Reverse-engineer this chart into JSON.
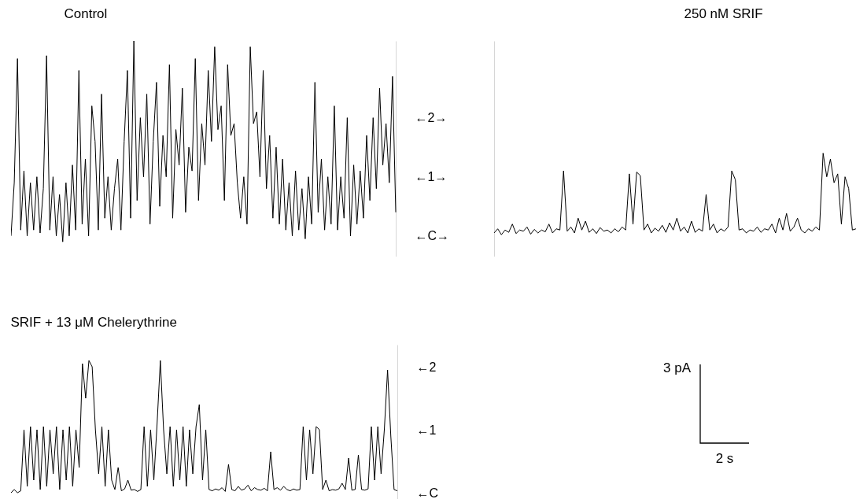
{
  "chart_data": [
    {
      "type": "line",
      "title": "Control",
      "categories": [
        null,
        null,
        null,
        null,
        null,
        null,
        null,
        null,
        null,
        null,
        null,
        null,
        null,
        null,
        null,
        null,
        null,
        null,
        null,
        null,
        null,
        null,
        null,
        null,
        null,
        null,
        null,
        null,
        null,
        null,
        null,
        null,
        null,
        null,
        null,
        null,
        null,
        null,
        null,
        null,
        null,
        null,
        null,
        null,
        null,
        null,
        null,
        null,
        null,
        null,
        null,
        null,
        null,
        null,
        null,
        null,
        null,
        null,
        null,
        null,
        null,
        null,
        null,
        null,
        null,
        null,
        null,
        null,
        null,
        null,
        null,
        null,
        null,
        null,
        null,
        null,
        null,
        null,
        null,
        null,
        null,
        null,
        null,
        null,
        null,
        null,
        null,
        null,
        null,
        null,
        null,
        null,
        null,
        null,
        null,
        null,
        null,
        null,
        null,
        null,
        null,
        null,
        null,
        null,
        null,
        null,
        null,
        null,
        null,
        null,
        null,
        null,
        null,
        null,
        null,
        null,
        null,
        null,
        null,
        null
      ],
      "series": [
        {
          "color": "#000000",
          "values": [
            0,
            0.9,
            3.0,
            0.1,
            1.1,
            0.0,
            0.9,
            0.1,
            1.0,
            0.05,
            0.8,
            3.05,
            0.1,
            1.0,
            0.0,
            0.7,
            -0.1,
            0.9,
            0.0,
            1.2,
            0.1,
            2.8,
            0.2,
            1.3,
            0.0,
            2.2,
            1.6,
            0.1,
            2.4,
            0.3,
            1.0,
            0.1,
            0.8,
            1.3,
            0.1,
            1.6,
            2.8,
            0.3,
            3.3,
            0.6,
            2.0,
            1.0,
            2.4,
            0.2,
            1.6,
            2.6,
            0.5,
            1.7,
            1.0,
            2.9,
            0.3,
            1.8,
            1.2,
            2.5,
            0.4,
            1.5,
            1.1,
            3.0,
            0.6,
            1.9,
            1.2,
            2.8,
            1.6,
            3.2,
            1.8,
            2.2,
            0.6,
            2.9,
            1.7,
            1.9,
            0.9,
            0.3,
            1.0,
            0.2,
            3.2,
            1.9,
            2.1,
            1.0,
            2.8,
            0.8,
            1.7,
            0.3,
            1.5,
            0.2,
            1.3,
            0.1,
            0.9,
            0.0,
            1.1,
            0.1,
            0.8,
            -0.05,
            1.0,
            0.2,
            2.6,
            0.4,
            1.3,
            0.1,
            1.0,
            0.2,
            2.2,
            0.1,
            1.0,
            0.3,
            2.0,
            0.0,
            1.2,
            0.2,
            1.1,
            0.3,
            1.7,
            0.6,
            2.0,
            0.8,
            2.5,
            1.2,
            1.9,
            0.9,
            2.7,
            0.4
          ]
        }
      ],
      "ylim": [
        -0.35,
        3.3
      ],
      "yticks": [
        {
          "value": 0,
          "label": "←C→"
        },
        {
          "value": 1,
          "label": "←1→"
        },
        {
          "value": 2,
          "label": "←2→"
        }
      ]
    },
    {
      "type": "line",
      "title": "250 nM SRIF",
      "categories": [
        null,
        null,
        null,
        null,
        null,
        null,
        null,
        null,
        null,
        null,
        null,
        null,
        null,
        null,
        null,
        null,
        null,
        null,
        null,
        null,
        null,
        null,
        null,
        null,
        null,
        null,
        null,
        null,
        null,
        null,
        null,
        null,
        null,
        null,
        null,
        null,
        null,
        null,
        null,
        null,
        null,
        null,
        null,
        null,
        null,
        null,
        null,
        null,
        null,
        null,
        null,
        null,
        null,
        null,
        null,
        null,
        null,
        null,
        null,
        null,
        null,
        null,
        null,
        null,
        null,
        null,
        null,
        null,
        null,
        null,
        null,
        null,
        null,
        null,
        null,
        null,
        null,
        null,
        null,
        null,
        null,
        null,
        null,
        null,
        null,
        null,
        null,
        null,
        null,
        null,
        null,
        null,
        null,
        null,
        null,
        null,
        null,
        null,
        null,
        null
      ],
      "series": [
        {
          "color": "#000000",
          "values": [
            0.05,
            0.12,
            0.02,
            0.1,
            0.06,
            0.2,
            0.04,
            0.1,
            0.08,
            0.15,
            0.03,
            0.11,
            0.05,
            0.1,
            0.07,
            0.2,
            0.05,
            0.12,
            0.1,
            1.1,
            0.08,
            0.15,
            0.05,
            0.3,
            0.1,
            0.25,
            0.06,
            0.12,
            0.04,
            0.14,
            0.08,
            0.1,
            0.05,
            0.12,
            0.07,
            0.15,
            0.1,
            1.05,
            0.2,
            1.08,
            1.02,
            0.1,
            0.2,
            0.05,
            0.13,
            0.08,
            0.18,
            0.06,
            0.22,
            0.1,
            0.3,
            0.08,
            0.15,
            0.05,
            0.25,
            0.06,
            0.12,
            0.08,
            0.7,
            0.1,
            0.2,
            0.05,
            0.12,
            0.08,
            0.15,
            1.1,
            0.95,
            0.1,
            0.12,
            0.05,
            0.1,
            0.08,
            0.15,
            0.06,
            0.12,
            0.1,
            0.2,
            0.05,
            0.3,
            0.1,
            0.38,
            0.08,
            0.15,
            0.3,
            0.1,
            0.05,
            0.12,
            0.08,
            0.15,
            0.1,
            1.4,
            1.0,
            1.3,
            0.9,
            1.05,
            0.2,
            1.0,
            0.8,
            0.1,
            0.12
          ]
        }
      ],
      "ylim": [
        -0.35,
        3.3
      ],
      "yticks": [
        {
          "value": 0,
          "label": null
        },
        {
          "value": 1,
          "label": null
        },
        {
          "value": 2,
          "label": null
        }
      ],
      "tick_labels": false
    },
    {
      "type": "line",
      "title": "SRIF + 13 μM Chelerythrine",
      "categories": [
        null,
        null,
        null,
        null,
        null,
        null,
        null,
        null,
        null,
        null,
        null,
        null,
        null,
        null,
        null,
        null,
        null,
        null,
        null,
        null,
        null,
        null,
        null,
        null,
        null,
        null,
        null,
        null,
        null,
        null,
        null,
        null,
        null,
        null,
        null,
        null,
        null,
        null,
        null,
        null,
        null,
        null,
        null,
        null,
        null,
        null,
        null,
        null,
        null,
        null,
        null,
        null,
        null,
        null,
        null,
        null,
        null,
        null,
        null,
        null,
        null,
        null,
        null,
        null,
        null,
        null,
        null,
        null,
        null,
        null,
        null,
        null,
        null,
        null,
        null,
        null,
        null,
        null,
        null,
        null,
        null,
        null,
        null,
        null,
        null,
        null,
        null,
        null,
        null,
        null,
        null,
        null,
        null,
        null,
        null,
        null,
        null,
        null,
        null,
        null,
        null,
        null,
        null,
        null,
        null,
        null,
        null,
        null,
        null,
        null,
        null,
        null,
        null,
        null,
        null,
        null,
        null,
        null,
        null,
        null
      ],
      "series": [
        {
          "color": "#000000",
          "values": [
            0.0,
            0.05,
            0.0,
            0.03,
            1.0,
            0.1,
            1.05,
            0.2,
            1.0,
            0.05,
            1.05,
            0.1,
            1.0,
            0.3,
            1.05,
            0.05,
            1.0,
            0.2,
            1.05,
            0.1,
            1.0,
            0.4,
            2.05,
            1.5,
            2.1,
            2.0,
            1.0,
            0.3,
            1.05,
            0.1,
            1.0,
            0.2,
            0.05,
            0.4,
            0.03,
            0.06,
            0.2,
            0.04,
            0.05,
            0.02,
            0.05,
            1.05,
            0.1,
            1.0,
            0.2,
            1.1,
            2.1,
            1.0,
            0.3,
            1.05,
            0.1,
            1.0,
            0.2,
            1.05,
            0.1,
            1.0,
            0.3,
            1.05,
            1.4,
            0.2,
            1.0,
            0.05,
            0.03,
            0.06,
            0.04,
            0.08,
            0.02,
            0.45,
            0.05,
            0.03,
            0.1,
            0.04,
            0.06,
            0.12,
            0.03,
            0.08,
            0.05,
            0.04,
            0.07,
            0.03,
            0.65,
            0.05,
            0.08,
            0.04,
            0.1,
            0.05,
            0.03,
            0.06,
            0.04,
            0.05,
            1.05,
            0.2,
            1.0,
            0.3,
            1.05,
            1.0,
            0.05,
            0.2,
            0.03,
            0.05,
            0.04,
            0.06,
            0.15,
            0.05,
            0.55,
            0.04,
            0.05,
            0.6,
            0.05,
            0.04,
            0.06,
            1.05,
            0.2,
            1.05,
            0.3,
            1.0,
            1.95,
            0.9,
            0.05,
            0.03
          ]
        }
      ],
      "ylim": [
        -0.1,
        2.35
      ],
      "yticks": [
        {
          "value": 0,
          "label": "←C"
        },
        {
          "value": 1,
          "label": "←1"
        },
        {
          "value": 2,
          "label": "←2"
        }
      ],
      "annotations": [
        "3 pA",
        "2 s"
      ]
    }
  ]
}
